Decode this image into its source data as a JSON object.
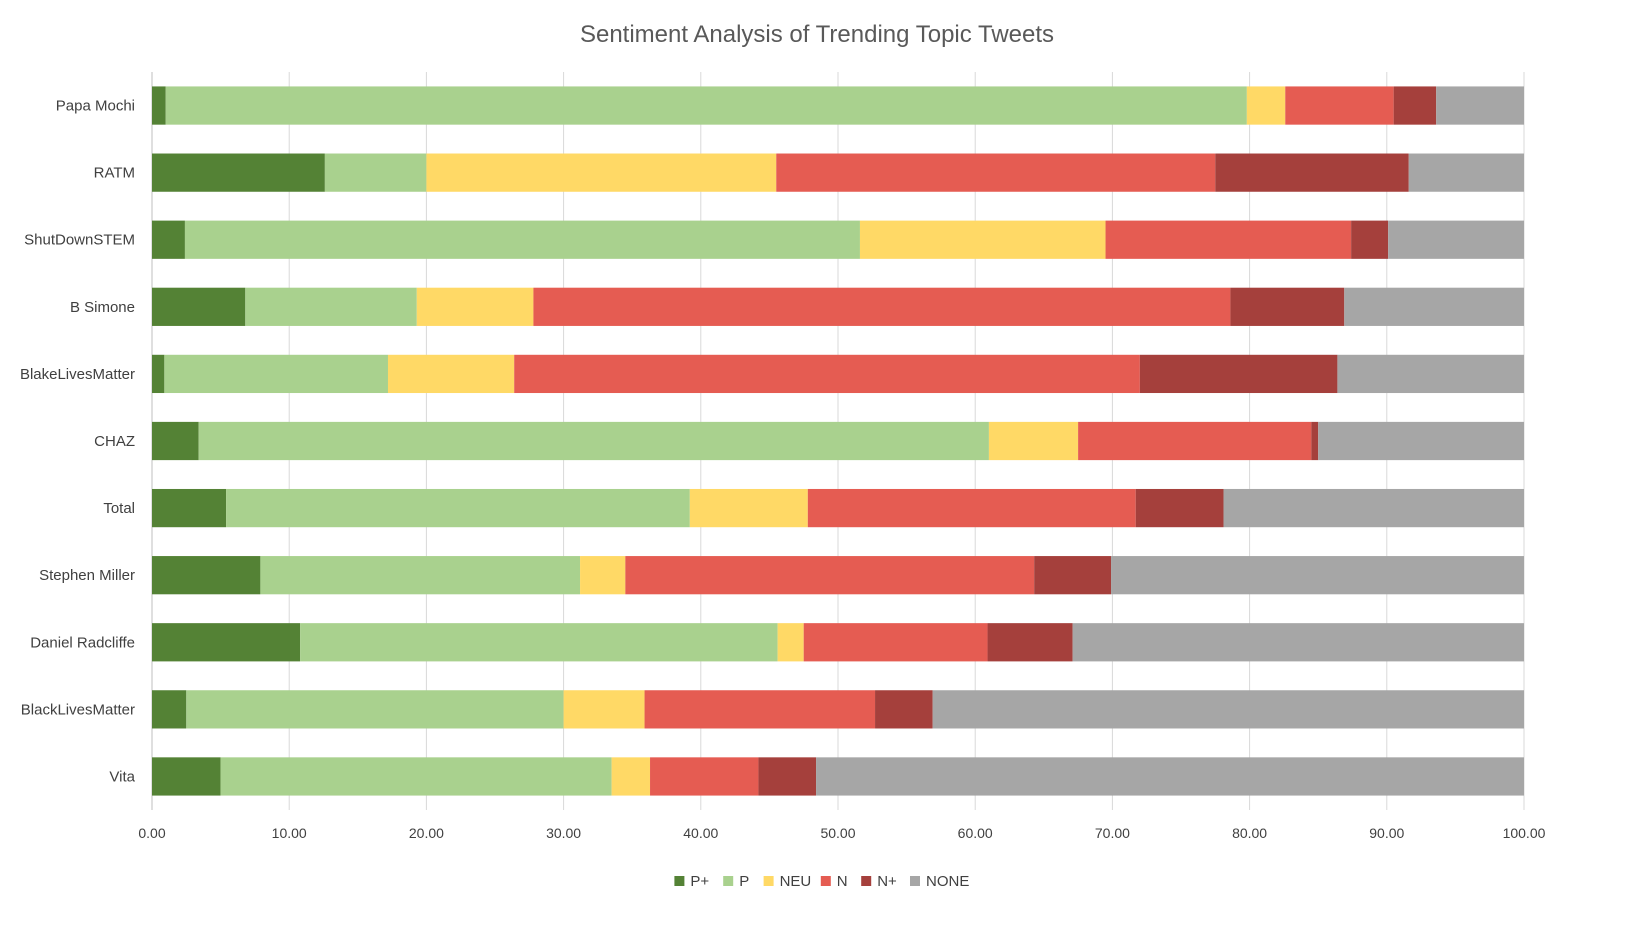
{
  "chart_data": {
    "type": "bar",
    "orientation": "horizontal",
    "stacked": true,
    "title": "Sentiment Analysis of Trending Topic Tweets",
    "xlabel": "",
    "ylabel": "",
    "xlim": [
      0,
      100
    ],
    "x_ticks": [
      "0.00",
      "10.00",
      "20.00",
      "30.00",
      "40.00",
      "50.00",
      "60.00",
      "70.00",
      "80.00",
      "90.00",
      "100.00"
    ],
    "grid": true,
    "legend_position": "bottom",
    "categories": [
      "Papa Mochi",
      "RATM",
      "ShutDownSTEM",
      "B Simone",
      "BlakeLivesMatter",
      "CHAZ",
      "Total",
      "Stephen Miller",
      "Daniel Radcliffe",
      "BlackLivesMatter",
      "Vita"
    ],
    "series": [
      {
        "name": "P+",
        "color": "#548235",
        "values": [
          1.0,
          12.6,
          2.4,
          6.8,
          0.9,
          3.4,
          5.4,
          7.9,
          10.8,
          2.5,
          5.0
        ]
      },
      {
        "name": "P",
        "color": "#a9d18e",
        "values": [
          78.8,
          7.4,
          49.2,
          12.5,
          16.3,
          57.6,
          33.8,
          23.3,
          34.8,
          27.5,
          28.5
        ]
      },
      {
        "name": "NEU",
        "color": "#ffd966",
        "values": [
          2.8,
          25.5,
          17.9,
          8.5,
          9.2,
          6.5,
          8.6,
          3.3,
          1.9,
          5.9,
          2.8
        ]
      },
      {
        "name": "N",
        "color": "#e55c52",
        "values": [
          7.9,
          32.0,
          17.9,
          50.8,
          45.6,
          17.0,
          23.9,
          29.8,
          13.4,
          16.8,
          7.9
        ]
      },
      {
        "name": "N+",
        "color": "#a5403c",
        "values": [
          3.1,
          14.1,
          2.7,
          8.3,
          14.4,
          0.5,
          6.4,
          5.6,
          6.2,
          4.2,
          4.2
        ]
      },
      {
        "name": "NONE",
        "color": "#a6a6a6",
        "values": [
          6.4,
          8.4,
          9.9,
          13.1,
          13.6,
          15.0,
          21.9,
          30.1,
          32.9,
          43.1,
          51.6
        ]
      }
    ]
  }
}
